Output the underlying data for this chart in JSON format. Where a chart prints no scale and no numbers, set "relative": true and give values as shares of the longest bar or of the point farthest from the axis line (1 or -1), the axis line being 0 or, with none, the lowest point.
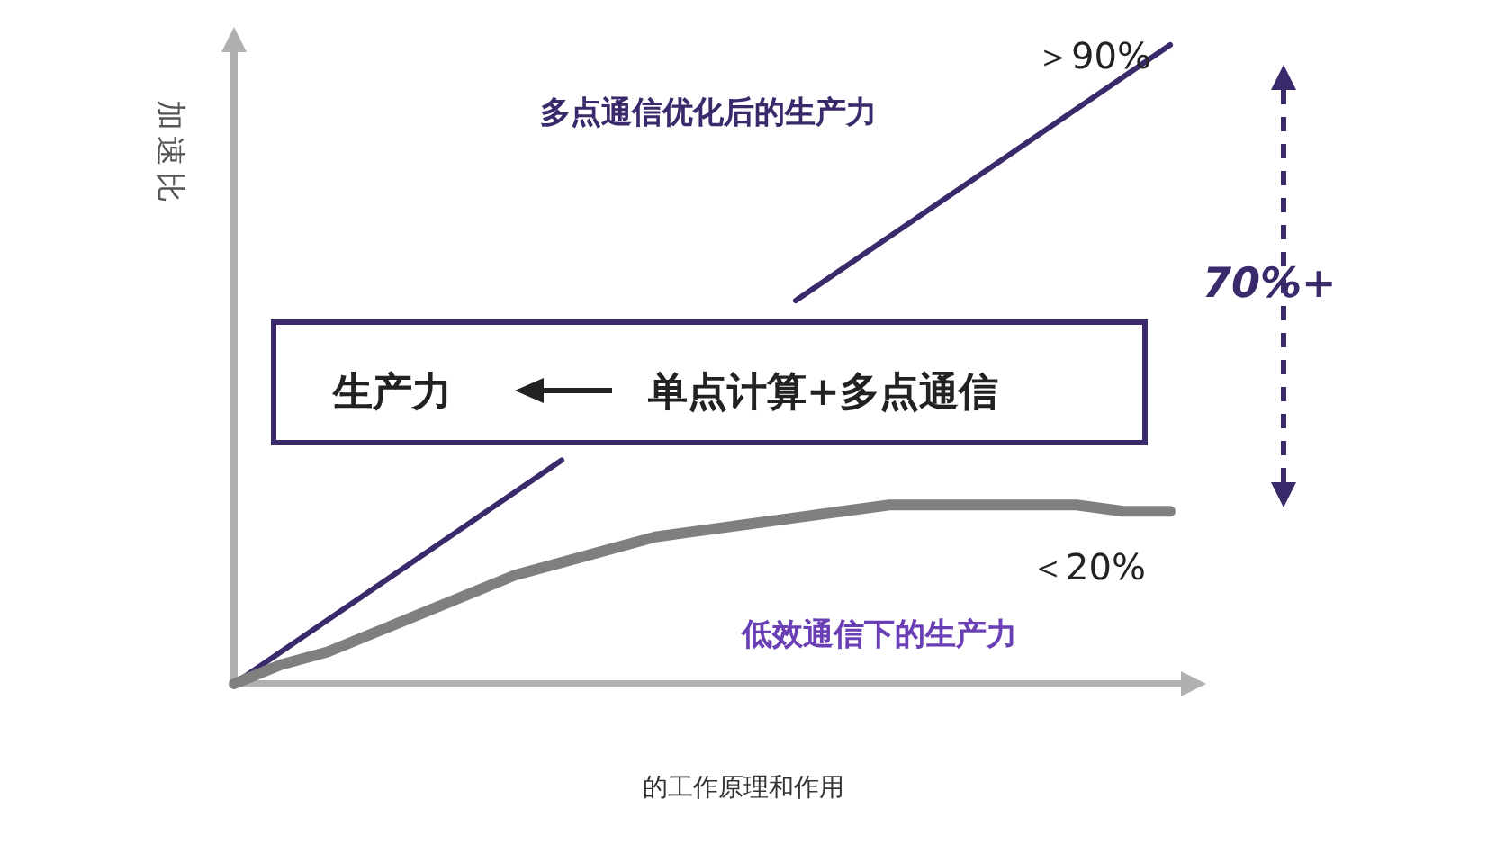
{
  "chart_data": {
    "type": "line",
    "relative": true,
    "ylabel": "加速比",
    "categories": [
      null,
      null,
      null,
      null,
      null,
      null,
      null,
      null,
      null,
      null,
      null,
      null,
      null,
      null,
      null,
      null,
      null,
      null,
      null,
      null,
      null
    ],
    "series": [
      {
        "name": "多点通信优化后的生产力",
        "color": "#3b2a6b",
        "values": [
          0,
          0.05,
          0.1,
          0.15,
          0.2,
          0.25,
          0.3,
          0.35,
          null,
          null,
          null,
          null,
          0.6,
          0.65,
          0.7,
          0.75,
          0.8,
          0.85,
          0.9,
          0.95,
          1
        ]
      },
      {
        "name": "低效通信下的生产力",
        "color": "#7f7f7f",
        "values": [
          0,
          0.03,
          0.05,
          0.08,
          0.11,
          0.14,
          0.17,
          0.19,
          0.21,
          0.23,
          0.24,
          0.25,
          0.26,
          0.27,
          0.28,
          0.28,
          0.28,
          0.28,
          0.28,
          0.27,
          0.27
        ]
      }
    ],
    "annotations": [
      "＞90%",
      "＜20%",
      "70%+",
      "生产力",
      "单点计算+多点通信",
      "的工作原理和作用"
    ],
    "marker": "none",
    "line_style": "solid"
  }
}
